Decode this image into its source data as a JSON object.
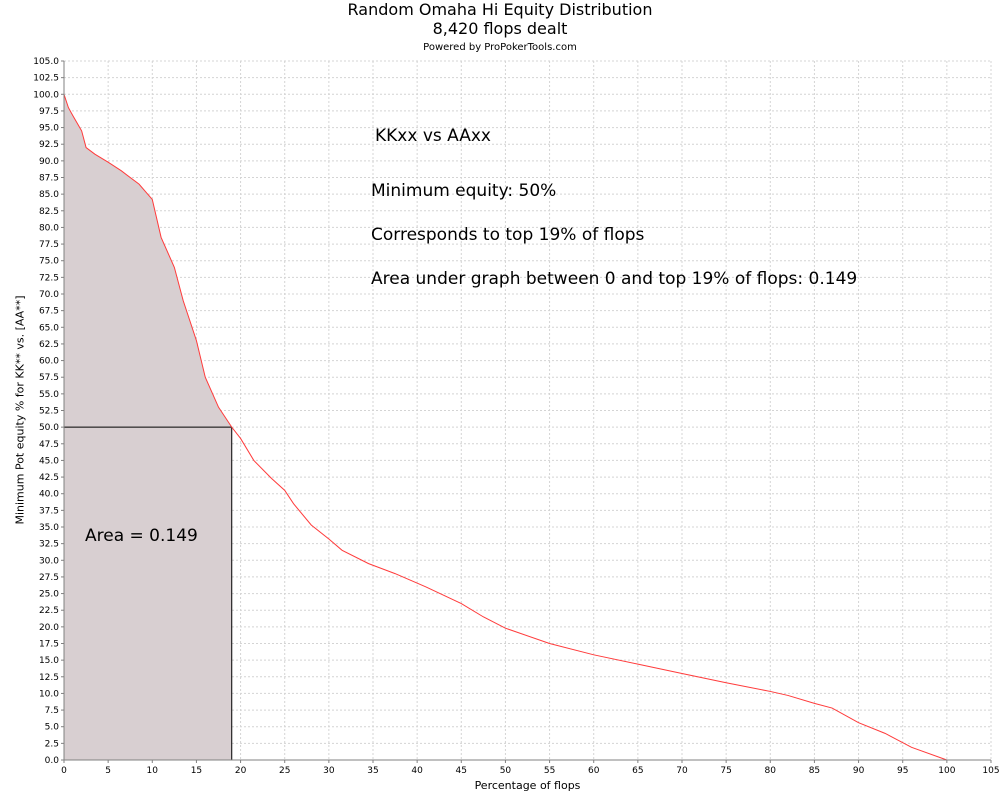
{
  "chart_data": {
    "type": "area",
    "title": "Random Omaha Hi Equity Distribution",
    "subtitle": "8,420 flops dealt",
    "credit": "Powered by ProPokerTools.com",
    "xlabel": "Percentage of flops",
    "ylabel": "Minimum Pot equity % for KK** vs. [AA**]",
    "xlim": [
      0,
      105
    ],
    "ylim": [
      0,
      105
    ],
    "x_tick_step": 5,
    "y_tick_step": 2.5,
    "grid": true,
    "series": [
      {
        "color": "#ff3b3b",
        "points": [
          [
            0,
            100
          ],
          [
            0.5,
            98
          ],
          [
            1,
            96.8
          ],
          [
            2,
            94.5
          ],
          [
            2.5,
            92
          ],
          [
            3.5,
            91
          ],
          [
            5,
            89.8
          ],
          [
            6.5,
            88.5
          ],
          [
            8.5,
            86.5
          ],
          [
            10,
            84.2
          ],
          [
            11,
            78.5
          ],
          [
            12.5,
            74
          ],
          [
            13.5,
            69
          ],
          [
            15,
            63
          ],
          [
            16,
            57.5
          ],
          [
            17.5,
            53
          ],
          [
            19,
            50
          ],
          [
            20,
            48.3
          ],
          [
            21.5,
            45
          ],
          [
            23.5,
            42.3
          ],
          [
            25,
            40.5
          ],
          [
            26,
            38.5
          ],
          [
            28,
            35.3
          ],
          [
            30,
            33.2
          ],
          [
            31.5,
            31.5
          ],
          [
            34.5,
            29.5
          ],
          [
            37.5,
            28
          ],
          [
            41,
            26
          ],
          [
            45,
            23.5
          ],
          [
            47.5,
            21.5
          ],
          [
            50,
            19.8
          ],
          [
            55,
            17.5
          ],
          [
            60,
            15.8
          ],
          [
            65,
            14.4
          ],
          [
            70,
            13
          ],
          [
            75,
            11.6
          ],
          [
            80,
            10.3
          ],
          [
            82,
            9.7
          ],
          [
            85,
            8.5
          ],
          [
            87,
            7.8
          ],
          [
            90,
            5.6
          ],
          [
            93,
            4
          ],
          [
            96,
            1.9
          ],
          [
            100,
            0
          ]
        ]
      }
    ],
    "shaded_region": {
      "x_from": 0,
      "x_to": 19,
      "color": "#d8cfd1"
    },
    "threshold": {
      "x": 19,
      "y": 50
    },
    "annotations": {
      "matchup": "KKxx vs AAxx",
      "min_equity": "Minimum equity: 50%",
      "corresponds": "Corresponds to top 19% of flops",
      "area_text": "Area under graph between 0 and top 19% of flops: 0.149",
      "area_label": "Area = 0.149"
    }
  }
}
